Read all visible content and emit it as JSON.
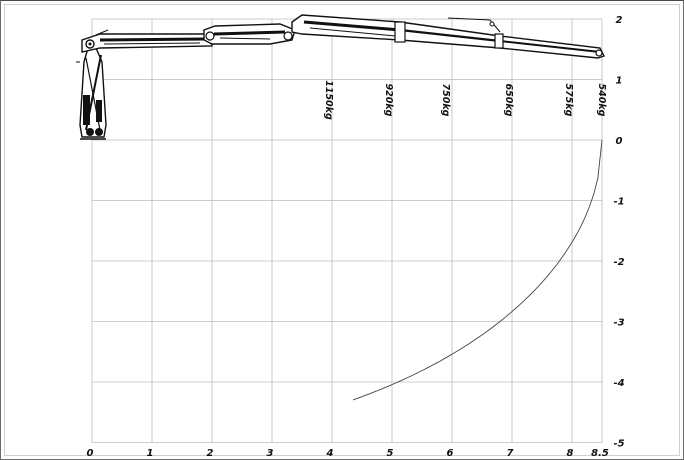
{
  "chart_data": {
    "type": "diagram",
    "title": "",
    "xlabel": "",
    "ylabel": "",
    "x_ticks": [
      "0",
      "1",
      "2",
      "3",
      "4",
      "5",
      "6",
      "7",
      "8",
      "8.5"
    ],
    "x_tick_values": [
      0,
      1,
      2,
      3,
      4,
      5,
      6,
      7,
      8,
      8.5
    ],
    "y_ticks": [
      "2",
      "1",
      "0",
      "-1",
      "-2",
      "-3",
      "-4",
      "-5"
    ],
    "y_tick_values": [
      2,
      1,
      0,
      -1,
      -2,
      -3,
      -4,
      -5
    ],
    "xlim": [
      0,
      8.5
    ],
    "ylim": [
      -5,
      2
    ],
    "grid": true,
    "load_ratings": [
      {
        "label": "1150kg",
        "x": 3.9
      },
      {
        "label": "920kg",
        "x": 4.9
      },
      {
        "label": "750kg",
        "x": 5.85
      },
      {
        "label": "650kg",
        "x": 6.9
      },
      {
        "label": "575kg",
        "x": 7.9
      },
      {
        "label": "540kg",
        "x": 8.45
      }
    ],
    "reach_arc": {
      "center": [
        0,
        0
      ],
      "radius_x": 8.5,
      "radius_y": 5.0,
      "from_x": 4.35,
      "to_x": 8.5
    }
  },
  "colors": {
    "grid": "#bdbdbd",
    "boom": "#111111",
    "arc": "#444444"
  }
}
